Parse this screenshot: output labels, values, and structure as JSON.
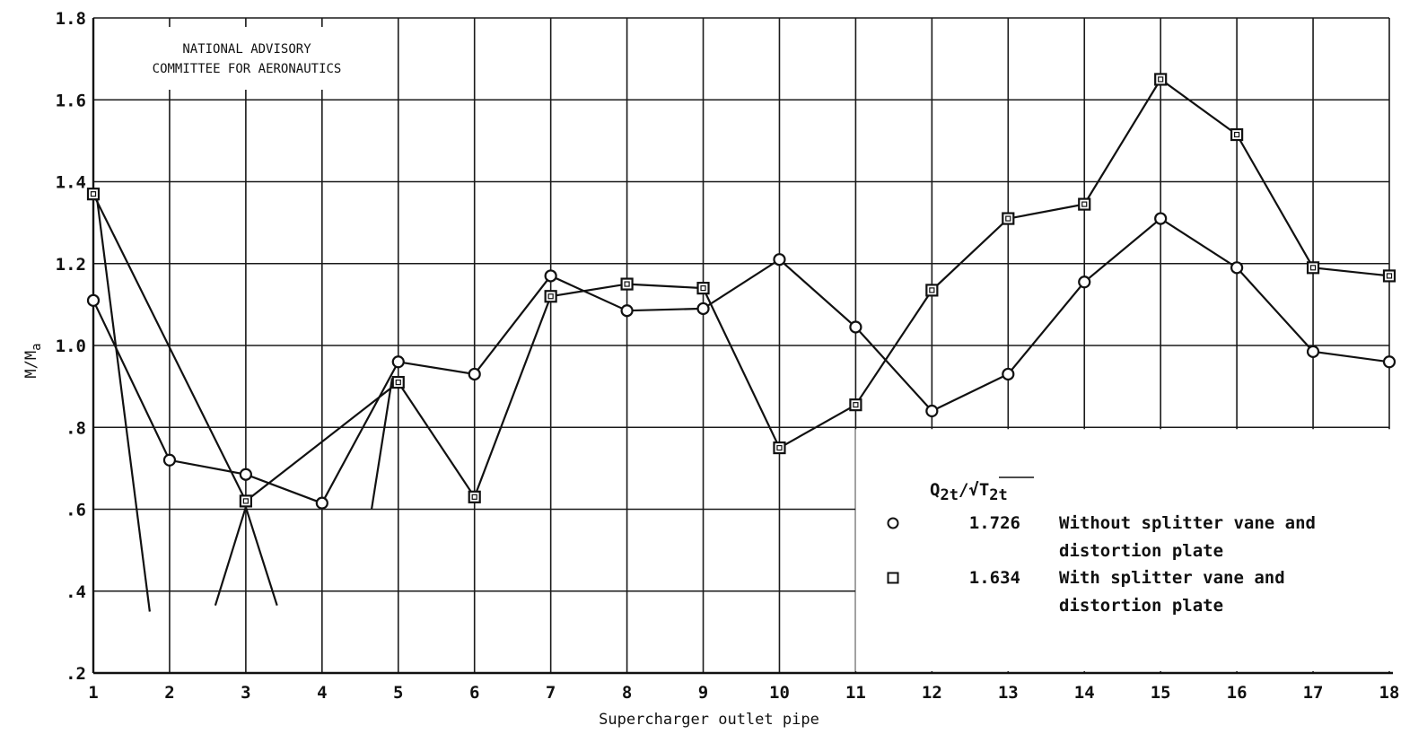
{
  "chart_data": {
    "type": "line",
    "xlabel": "Supercharger outlet pipe",
    "ylabel": "M/Ma",
    "xlim": [
      1,
      18
    ],
    "ylim": [
      0.2,
      1.8
    ],
    "x_ticks": [
      "1",
      "2",
      "3",
      "4",
      "5",
      "6",
      "7",
      "8",
      "9",
      "10",
      "11",
      "12",
      "13",
      "14",
      "15",
      "16",
      "17",
      "18"
    ],
    "y_ticks": [
      ".2",
      ".4",
      ".6",
      ".8",
      "1.0",
      "1.2",
      "1.4",
      "1.6",
      "1.8"
    ],
    "y_tick_values": [
      0.2,
      0.4,
      0.6,
      0.8,
      1.0,
      1.2,
      1.4,
      1.6,
      1.8
    ],
    "grid": true,
    "credit_lines": [
      "NATIONAL ADVISORY",
      "COMMITTEE FOR AERONAUTICS"
    ],
    "legend": {
      "header": "Q2t/√T2t",
      "placement": "bottom-right"
    },
    "series": [
      {
        "name": "Without splitter vane and distortion plate",
        "legend_value": "1.726",
        "label_lines": [
          "Without splitter vane and",
          "distortion plate"
        ],
        "marker": "circle",
        "x": [
          1,
          2,
          3,
          4,
          5,
          6,
          7,
          8,
          9,
          10,
          11,
          12,
          13,
          14,
          15,
          16,
          17,
          18
        ],
        "values": [
          1.11,
          0.72,
          0.685,
          0.615,
          0.96,
          0.93,
          1.17,
          1.085,
          1.09,
          1.21,
          1.045,
          0.84,
          0.93,
          1.155,
          1.31,
          1.19,
          0.985,
          0.96
        ]
      },
      {
        "name": "With splitter vane and distortion plate",
        "legend_value": "1.634",
        "label_lines": [
          "With splitter vane and",
          "distortion plate"
        ],
        "marker": "square",
        "x": [
          1,
          3,
          5,
          6,
          7,
          8,
          9,
          10,
          11,
          12,
          13,
          14,
          15,
          16,
          17,
          18
        ],
        "values": [
          1.37,
          0.62,
          0.91,
          0.63,
          1.12,
          1.15,
          1.14,
          0.75,
          0.855,
          1.135,
          1.31,
          1.345,
          1.65,
          1.515,
          1.19,
          1.17
        ]
      }
    ]
  }
}
